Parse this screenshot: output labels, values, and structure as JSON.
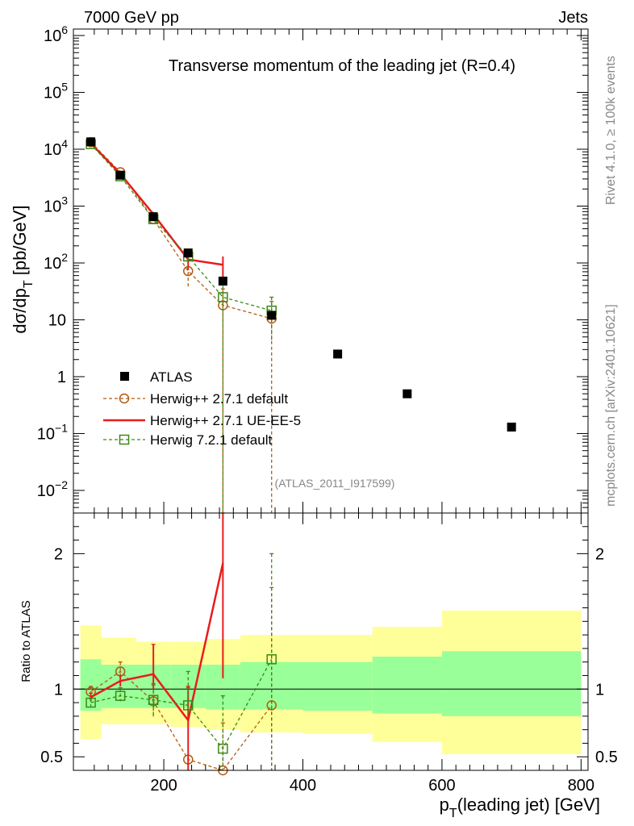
{
  "header": {
    "left": "7000 GeV pp",
    "right": "Jets",
    "side_top": "Rivet 4.1.0, ≥ 100k events",
    "side_bottom": "mcplots.cern.ch [arXiv:2401.10621]",
    "analysis_id": "(ATLAS_2011_I917599)"
  },
  "legend": {
    "atlas": "ATLAS",
    "h271_default": "Herwig++ 2.7.1 default",
    "h271_ueee5": "Herwig++ 2.7.1 UE-EE-5",
    "h721_default": "Herwig 7.2.1 default"
  },
  "colors": {
    "atlas": "#000000",
    "h271_default": "#b35a0f",
    "h271_ueee5": "#e81c1c",
    "h721_default": "#3a8a14",
    "band_outer": "#ffff99",
    "band_inner": "#99ff99"
  },
  "chart_data": {
    "type": "line",
    "title": "Transverse momentum of the leading jet (R=0.4)",
    "xlabel": "p_T(leading jet) [GeV]",
    "ylabel": "dσ/dp_T [pb/GeV]",
    "ratio_ylabel": "Ratio to ATLAS",
    "xlim": [
      70,
      810
    ],
    "ylim_log": [
      0.004,
      1300000
    ],
    "ratio_ylim": [
      0.4,
      2.3
    ],
    "x_ticks": [
      200,
      400,
      600,
      800
    ],
    "x_tick_labels": [
      "200",
      "400",
      "600",
      "800"
    ],
    "y_ticks": [
      0.01,
      0.1,
      1,
      10,
      100,
      1000,
      10000,
      100000,
      1000000
    ],
    "y_tick_labels": [
      {
        "base": "10",
        "exp": "−2"
      },
      {
        "base": "10",
        "exp": "−1"
      },
      {
        "base": "1",
        "exp": ""
      },
      {
        "base": "10",
        "exp": ""
      },
      {
        "base": "10",
        "exp": "2"
      },
      {
        "base": "10",
        "exp": "3"
      },
      {
        "base": "10",
        "exp": "4"
      },
      {
        "base": "10",
        "exp": "5"
      },
      {
        "base": "10",
        "exp": "6"
      }
    ],
    "ratio_ticks": [
      0.5,
      1,
      2
    ],
    "ratio_tick_labels": [
      "0.5",
      "1",
      "2"
    ],
    "atlas": {
      "x": [
        95,
        137.5,
        185,
        235,
        285,
        355,
        450,
        550,
        700
      ],
      "y": [
        13500,
        3500,
        650,
        150,
        48,
        12,
        2.5,
        0.5,
        0.13
      ]
    },
    "bins": [
      {
        "lo": 80,
        "hi": 110,
        "inner": [
          0.84,
          1.22
        ],
        "outer": [
          0.63,
          1.47
        ]
      },
      {
        "lo": 110,
        "hi": 160,
        "inner": [
          0.86,
          1.18
        ],
        "outer": [
          0.74,
          1.38
        ]
      },
      {
        "lo": 160,
        "hi": 210,
        "inner": [
          0.86,
          1.18
        ],
        "outer": [
          0.74,
          1.35
        ]
      },
      {
        "lo": 210,
        "hi": 260,
        "inner": [
          0.86,
          1.18
        ],
        "outer": [
          0.72,
          1.35
        ]
      },
      {
        "lo": 260,
        "hi": 310,
        "inner": [
          0.85,
          1.18
        ],
        "outer": [
          0.7,
          1.37
        ]
      },
      {
        "lo": 310,
        "hi": 400,
        "inner": [
          0.85,
          1.2
        ],
        "outer": [
          0.68,
          1.4
        ]
      },
      {
        "lo": 400,
        "hi": 500,
        "inner": [
          0.84,
          1.2
        ],
        "outer": [
          0.67,
          1.4
        ]
      },
      {
        "lo": 500,
        "hi": 600,
        "inner": [
          0.82,
          1.24
        ],
        "outer": [
          0.61,
          1.46
        ]
      },
      {
        "lo": 600,
        "hi": 800,
        "inner": [
          0.8,
          1.28
        ],
        "outer": [
          0.52,
          1.58
        ]
      }
    ],
    "series": [
      {
        "key": "h271_default",
        "name": "Herwig++ 2.7.1 default",
        "style": "dashed",
        "marker": "circle",
        "x": [
          95,
          137.5,
          185,
          235,
          285,
          355
        ],
        "y": [
          13300,
          3950,
          590,
          72,
          18,
          10.5
        ],
        "y_err_lo": [
          13000,
          3850,
          540,
          36,
          0.001,
          0.001
        ],
        "y_err_hi": [
          13600,
          4050,
          640,
          110,
          35,
          21
        ],
        "ratio": [
          0.98,
          1.13,
          0.91,
          0.48,
          0.38,
          0.88
        ],
        "ratio_err_lo": [
          0.95,
          1.09,
          0.78,
          0.38,
          0.0,
          0.0
        ],
        "ratio_err_hi": [
          1.02,
          1.2,
          1.03,
          1.01,
          0.75,
          1.75
        ]
      },
      {
        "key": "h271_ueee5",
        "name": "Herwig++ 2.7.1 UE-EE-5",
        "style": "solid",
        "marker": "none",
        "x": [
          95,
          137.5,
          185,
          235,
          285
        ],
        "y": [
          12700,
          3700,
          720,
          115,
          93
        ],
        "y_err_lo": [
          12400,
          3600,
          650,
          75,
          55
        ],
        "y_err_hi": [
          13000,
          3800,
          790,
          155,
          130
        ],
        "ratio": [
          0.94,
          1.06,
          1.11,
          0.77,
          1.93
        ],
        "ratio_err_lo": [
          0.91,
          1.02,
          1.0,
          0.37,
          1.08
        ],
        "ratio_err_hi": [
          0.97,
          1.1,
          1.33,
          1.02,
          2.6
        ]
      },
      {
        "key": "h721_default",
        "name": "Herwig 7.2.1 default",
        "style": "dashed",
        "marker": "square",
        "x": [
          95,
          137.5,
          185,
          235,
          285,
          355
        ],
        "y": [
          12300,
          3350,
          590,
          130,
          25,
          14.5
        ],
        "y_err_lo": [
          12000,
          3250,
          540,
          105,
          0.001,
          4
        ],
        "y_err_hi": [
          12600,
          3450,
          640,
          160,
          50,
          25
        ],
        "ratio": [
          0.9,
          0.95,
          0.92,
          0.88,
          0.56,
          1.22
        ],
        "ratio_err_lo": [
          0.87,
          0.91,
          0.8,
          0.82,
          0.0,
          0.0
        ],
        "ratio_err_hi": [
          0.93,
          1.01,
          1.04,
          1.13,
          0.95,
          2.0
        ]
      }
    ]
  }
}
